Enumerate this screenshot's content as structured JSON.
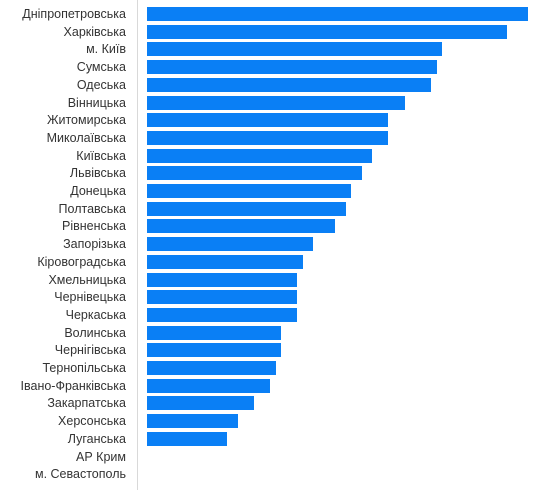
{
  "chart_data": {
    "type": "bar",
    "orientation": "horizontal",
    "bar_color": "#0a7ff5",
    "grid": false,
    "categories": [
      "Дніпропетровська",
      "Харківська",
      "м. Київ",
      "Сумська",
      "Одеська",
      "Вінницька",
      "Житомирська",
      "Миколаївська",
      "Київська",
      "Львівська",
      "Донецька",
      "Полтавська",
      "Рівненська",
      "Запорізька",
      "Кіровоградська",
      "Хмельницька",
      "Чернівецька",
      "Черкаська",
      "Волинська",
      "Чернігівська",
      "Тернопільська",
      "Івано-Франківська",
      "Закарпатська",
      "Херсонська",
      "Луганська",
      "АР Крим",
      "м. Севастополь"
    ],
    "values": [
      71,
      67,
      55,
      54,
      53,
      48,
      45,
      45,
      42,
      40,
      38,
      37,
      35,
      31,
      29,
      28,
      28,
      28,
      25,
      25,
      24,
      23,
      20,
      17,
      15,
      0,
      0
    ],
    "xlim": [
      0,
      71
    ]
  }
}
